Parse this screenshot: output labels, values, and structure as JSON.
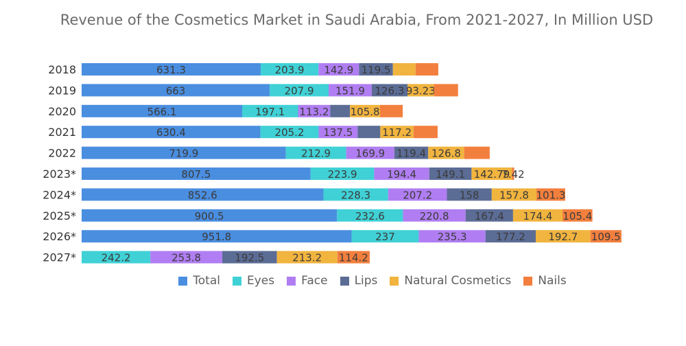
{
  "chart_data": {
    "type": "bar",
    "orientation": "horizontal",
    "stacked": true,
    "title": "Revenue of the Cosmetics Market in Saudi Arabia, From 2021-2027, In Million USD",
    "categories": [
      "2018",
      "2019",
      "2020",
      "2021",
      "2022",
      "2023*",
      "2024*",
      "2025*",
      "2026*",
      "2027*"
    ],
    "series": [
      {
        "name": "Total",
        "color": "#4a8ee0",
        "values": [
          631.3,
          663,
          566.1,
          630.4,
          719.9,
          807.5,
          852.6,
          900.5,
          951.8,
          null
        ]
      },
      {
        "name": "Eyes",
        "color": "#40d1d6",
        "values": [
          203.9,
          207.9,
          197.1,
          205.2,
          212.9,
          223.9,
          228.3,
          232.6,
          237,
          242.2
        ]
      },
      {
        "name": "Face",
        "color": "#b07ef2",
        "values": [
          142.9,
          151.9,
          113.2,
          137.5,
          169.9,
          194.4,
          207.2,
          220.8,
          235.3,
          253.8
        ]
      },
      {
        "name": "Lips",
        "color": "#5b6c95",
        "values": [
          119.5,
          126.3,
          70,
          80,
          119.4,
          149.1,
          158,
          167.4,
          177.2,
          192.5
        ]
      },
      {
        "name": "Natural Cosmetics",
        "color": "#f1b43f",
        "values": [
          80,
          93.23,
          105.8,
          117.2,
          126.8,
          142.79,
          157.8,
          174.4,
          192.7,
          213.2
        ]
      },
      {
        "name": "Nails",
        "color": "#f37f3e",
        "values": [
          80,
          85,
          80,
          85,
          90,
          7.42,
          101.3,
          105.4,
          109.5,
          114.2
        ]
      }
    ],
    "labels": [
      [
        "631.3",
        "203.9",
        "142.9",
        "119.5",
        "",
        ""
      ],
      [
        "663",
        "207.9",
        "151.9",
        "126.3",
        "93.23",
        ""
      ],
      [
        "566.1",
        "197.1",
        "113.2",
        "",
        "105.8",
        ""
      ],
      [
        "630.4",
        "205.2",
        "137.5",
        "",
        "117.2",
        ""
      ],
      [
        "719.9",
        "212.9",
        "169.9",
        "119.4",
        "126.8",
        ""
      ],
      [
        "807.5",
        "223.9",
        "194.4",
        "149.1",
        "142.79",
        "7.42"
      ],
      [
        "852.6",
        "228.3",
        "207.2",
        "158",
        "157.8",
        "101.3"
      ],
      [
        "900.5",
        "232.6",
        "220.8",
        "167.4",
        "174.4",
        "105.4"
      ],
      [
        "951.8",
        "237",
        "235.3",
        "177.2",
        "192.7",
        "109.5"
      ],
      [
        "",
        "242.2",
        "253.8",
        "192.5",
        "213.2",
        "114.2"
      ]
    ],
    "legend_position": "bottom",
    "grid": false
  }
}
